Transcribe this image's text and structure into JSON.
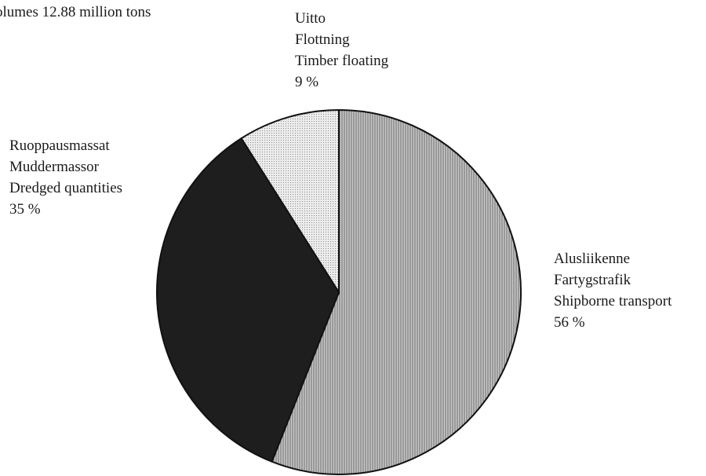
{
  "caption": "olumes 12.88 million tons",
  "colors": {
    "shipborne": "#a8a8a8",
    "dredged": "#1e1e1e",
    "timber": "#dcdcdc",
    "outline": "#111111"
  },
  "chart_data": {
    "type": "pie",
    "title": "",
    "slices": [
      {
        "labels": [
          "Alusliikenne",
          "Fartygstrafik",
          "Shipborne transport"
        ],
        "percent_label": "56 %",
        "value": 56
      },
      {
        "labels": [
          "Ruoppausmassat",
          "Muddermassor",
          "Dredged quantities"
        ],
        "percent_label": "35 %",
        "value": 35
      },
      {
        "labels": [
          "Uitto",
          "Flottning",
          "Timber floating"
        ],
        "percent_label": "9 %",
        "value": 9
      }
    ]
  }
}
